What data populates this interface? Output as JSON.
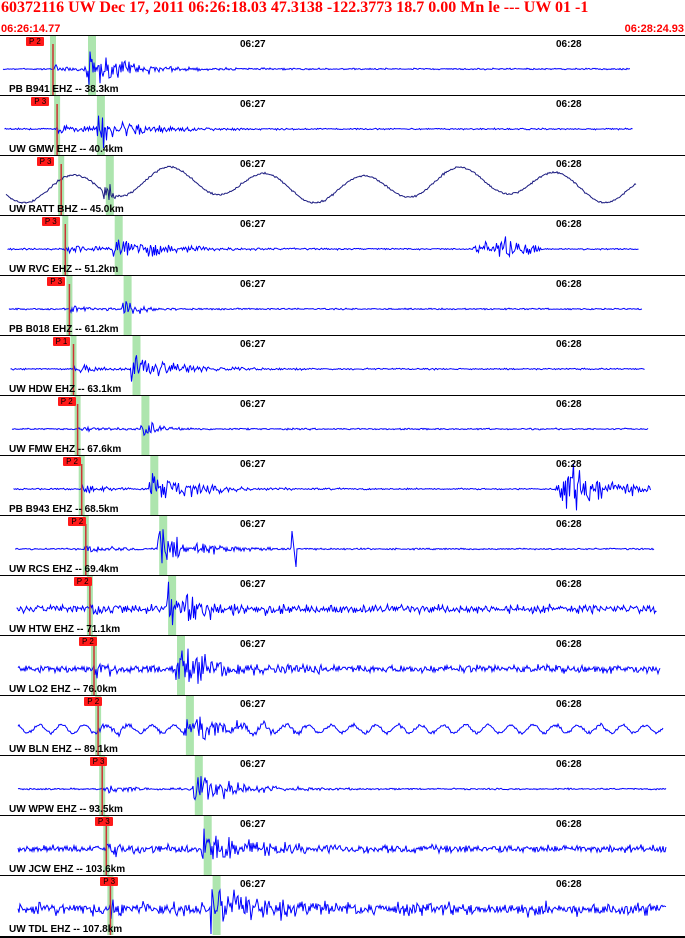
{
  "header": {
    "title": "60372116 UW Dec 17, 2011 06:26:18.03    47.3138 -122.3773 18.7 0.00 Mn le --- UW 01   -1",
    "start_time": "06:26:14.77",
    "end_time": "06:28:24.93"
  },
  "colors": {
    "trace": "#0000ff",
    "trace_dark": "#1a1a80",
    "pick": "#ff1a1a",
    "pick_line": "#cc3333",
    "shade": "#9fe0a0",
    "header": "#ff0000"
  },
  "tick_labels": [
    "06:27",
    "06:28"
  ],
  "chart_data": {
    "type": "line",
    "title": "60372116 UW Dec 17, 2011 06:26:18.03    47.3138 -122.3773 18.7 0.00 Mn le --- UW 01   -1",
    "x_range": [
      "06:26:14.77",
      "06:28:24.93"
    ],
    "x_ticks": [
      "06:27",
      "06:28"
    ],
    "series": [
      {
        "name": "PB B941 EHZ -- 38.3km",
        "pick": "P 2",
        "style": "quake"
      },
      {
        "name": "UW GMW EHZ -- 40.4km",
        "pick": "P 3",
        "style": "quake"
      },
      {
        "name": "UW RATT BHZ -- 45.0km",
        "pick": "P 3",
        "style": "longperiod"
      },
      {
        "name": "UW RVC EHZ -- 51.2km",
        "pick": "P 3",
        "style": "quake_burst"
      },
      {
        "name": "PB B018 EHZ -- 61.2km",
        "pick": "P 3",
        "style": "quake_small"
      },
      {
        "name": "UW HDW EHZ -- 63.1km",
        "pick": "P 1",
        "style": "quake"
      },
      {
        "name": "UW FMW EHZ -- 67.6km",
        "pick": "P 2",
        "style": "quake_small"
      },
      {
        "name": "PB B943 EHZ -- 68.5km",
        "pick": "P 2",
        "style": "quake_late"
      },
      {
        "name": "UW RCS EHZ -- 69.4km",
        "pick": "P 2",
        "style": "spike"
      },
      {
        "name": "UW HTW EHZ -- 71.1km",
        "pick": "P 2",
        "style": "noisy"
      },
      {
        "name": "UW LO2 EHZ -- 76.0km",
        "pick": "P 2",
        "style": "noisy"
      },
      {
        "name": "UW BLN EHZ -- 89.1km",
        "pick": "P 2",
        "style": "wavy"
      },
      {
        "name": "UW WPW EHZ -- 93.5km",
        "pick": "P 3",
        "style": "quake"
      },
      {
        "name": "UW JCW EHZ -- 103.6km",
        "pick": "P 3",
        "style": "noisy_quake"
      },
      {
        "name": "UW TDL EHZ -- 107.8km",
        "pick": "P 3",
        "style": "very_noisy"
      }
    ]
  }
}
